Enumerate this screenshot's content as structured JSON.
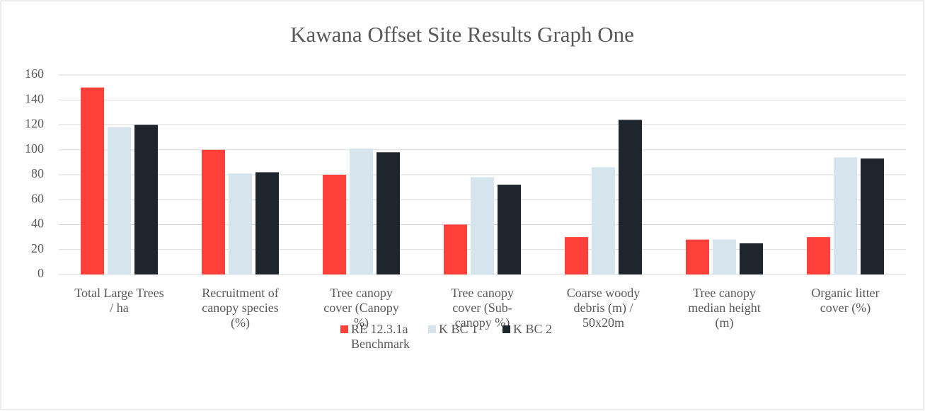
{
  "chart_data": {
    "type": "bar",
    "title": "Kawana Offset Site Results Graph One",
    "categories": [
      "Total Large Trees / ha",
      "Recruitment of canopy species (%)",
      "Tree canopy cover (Canopy %)",
      "Tree canopy cover (Sub-canopy %)",
      "Coarse woody debris (m) / 50x20m",
      "Tree canopy median height (m)",
      "Organic litter cover (%)"
    ],
    "series": [
      {
        "name": "RE 12.3.1a Benchmark",
        "color": "#ff403a",
        "values": [
          150,
          100,
          80,
          40,
          30,
          28,
          30
        ]
      },
      {
        "name": "K BC 1",
        "color": "#d6e4ee",
        "values": [
          118,
          81,
          101,
          78,
          86,
          28,
          94
        ]
      },
      {
        "name": "K BC 2",
        "color": "#1f252d",
        "values": [
          120,
          82,
          98,
          72,
          124,
          25,
          93
        ]
      }
    ],
    "ylim": [
      0,
      160
    ],
    "yticks": [
      0,
      20,
      40,
      60,
      80,
      100,
      120,
      140,
      160
    ],
    "grid": true,
    "legend": "bottom"
  }
}
